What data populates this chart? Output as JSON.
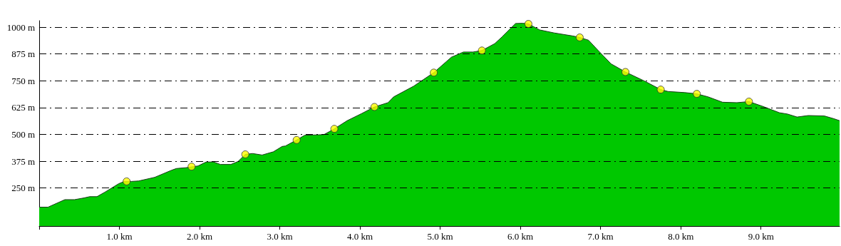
{
  "chart_data": {
    "type": "area",
    "xlim": [
      0,
      9.98
    ],
    "ylim": [
      73,
      1030
    ],
    "xticks": [
      {
        "value": 1,
        "label": "1.0 km"
      },
      {
        "value": 2,
        "label": "2.0 km"
      },
      {
        "value": 3,
        "label": "3.0 km"
      },
      {
        "value": 4,
        "label": "4.0 km"
      },
      {
        "value": 5,
        "label": "5.0 km"
      },
      {
        "value": 6,
        "label": "6.0 km"
      },
      {
        "value": 7,
        "label": "7.0 km"
      },
      {
        "value": 8,
        "label": "8.0 km"
      },
      {
        "value": 9,
        "label": "9.0 km"
      }
    ],
    "yticks": [
      {
        "value": 250,
        "label": "250 m"
      },
      {
        "value": 375,
        "label": "375 m"
      },
      {
        "value": 500,
        "label": "500 m"
      },
      {
        "value": 625,
        "label": "625 m"
      },
      {
        "value": 750,
        "label": "750 m"
      },
      {
        "value": 875,
        "label": "875 m"
      },
      {
        "value": 1000,
        "label": "1000 m"
      }
    ],
    "grid": "y",
    "series": [
      {
        "color": "#00c800",
        "x": [
          0,
          0.11,
          0.32,
          0.44,
          0.56,
          0.63,
          0.72,
          0.82,
          0.99,
          1.06,
          1.15,
          1.24,
          1.44,
          1.65,
          1.71,
          1.83,
          1.98,
          2.08,
          2.17,
          2.26,
          2.39,
          2.48,
          2.57,
          2.66,
          2.78,
          2.92,
          3.03,
          3.07,
          3.21,
          3.31,
          3.55,
          3.68,
          3.84,
          4.02,
          4.18,
          4.35,
          4.42,
          4.67,
          4.92,
          5.14,
          5.29,
          5.41,
          5.52,
          5.68,
          5.77,
          5.94,
          6.03,
          6.1,
          6.24,
          6.42,
          6.65,
          6.74,
          6.85,
          6.98,
          7.13,
          7.31,
          7.54,
          7.75,
          7.84,
          8.05,
          8.2,
          8.34,
          8.52,
          8.7,
          8.85,
          9.02,
          9.23,
          9.33,
          9.45,
          9.59,
          9.79,
          9.91,
          9.98
        ],
        "values": [
          161,
          161,
          196,
          196,
          204,
          210,
          210,
          231,
          270,
          281,
          281,
          283,
          300,
          333,
          341,
          345,
          353,
          371,
          372,
          360,
          360,
          374,
          407,
          411,
          404,
          419,
          444,
          446,
          474,
          496,
          499,
          526,
          564,
          597,
          628,
          648,
          675,
          725,
          788,
          860,
          884,
          884,
          891,
          923,
          954,
          1017,
          1018,
          1015,
          987,
          973,
          959,
          952,
          939,
          887,
          829,
          791,
          750,
          709,
          700,
          695,
          689,
          675,
          650,
          648,
          653,
          631,
          601,
          595,
          581,
          588,
          586,
          573,
          564
        ]
      },
      {
        "type": "scatter",
        "color": "#ffff00",
        "marker": "circle",
        "x": [
          1.09,
          1.9,
          2.57,
          3.21,
          3.68,
          4.18,
          4.92,
          5.52,
          6.1,
          6.74,
          7.31,
          7.75,
          8.2,
          8.85
        ],
        "values": [
          281,
          350,
          407,
          474,
          526,
          628,
          788,
          891,
          1015,
          952,
          791,
          709,
          689,
          653
        ]
      }
    ]
  }
}
